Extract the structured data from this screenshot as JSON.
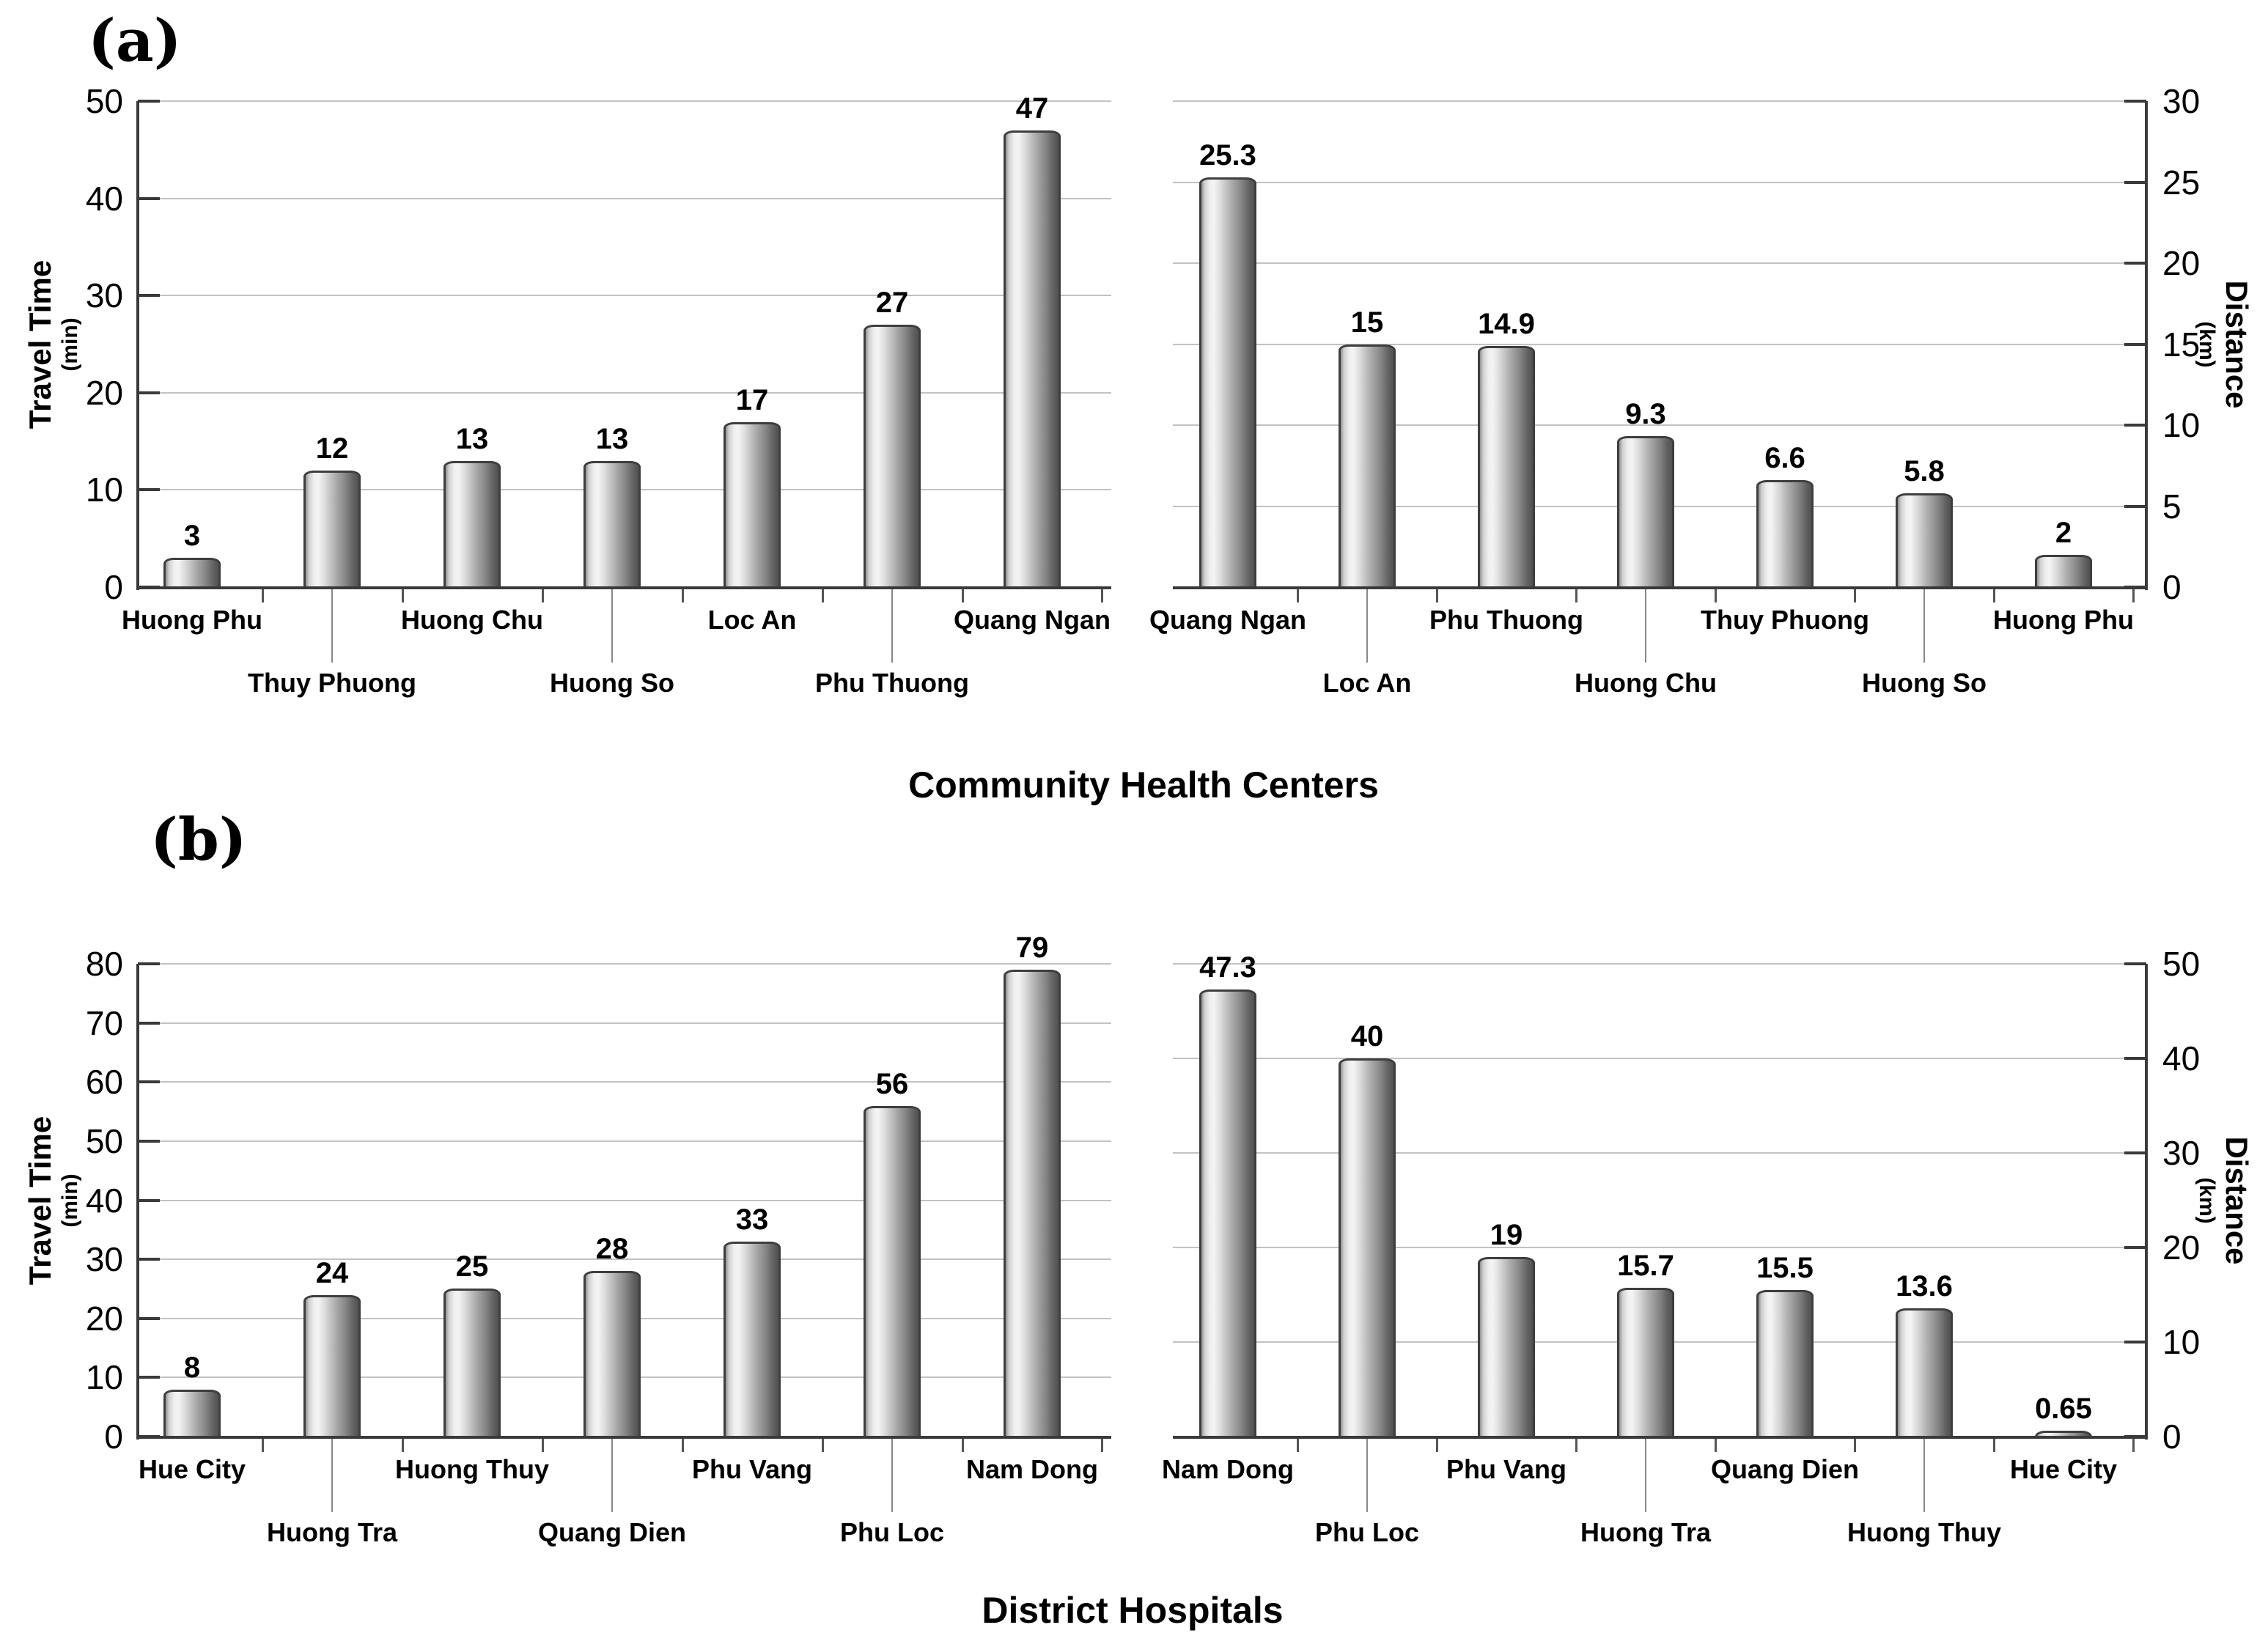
{
  "panels": {
    "a": {
      "label": "(a)",
      "title": "Community Health Centers"
    },
    "b": {
      "label": "(b)",
      "title": "District Hospitals"
    }
  },
  "colors": {
    "bar_light": "#f4f4f4",
    "bar_dark": "#525252",
    "bar_outline": "#3e3e3e",
    "gridline": "#c2c2c2",
    "axis": "#3a3a3a",
    "text": "#000000",
    "background": "#ffffff"
  },
  "chart_data": [
    {
      "type": "bar",
      "panel": "a",
      "slot": "left",
      "title": "Community Health Centers",
      "ylabel": "Travel Time",
      "ylabel_unit": "(min)",
      "axis_side": "left",
      "ylim": [
        0,
        50
      ],
      "ytick_step": 10,
      "grid": true,
      "legend": "none",
      "categories": [
        "Huong Phu",
        "Thuy Phuong",
        "Huong Chu",
        "Huong So",
        "Loc An",
        "Phu Thuong",
        "Quang Ngan"
      ],
      "values": [
        3,
        12,
        13,
        13,
        17,
        27,
        47
      ]
    },
    {
      "type": "bar",
      "panel": "a",
      "slot": "right",
      "title": "Community Health Centers",
      "ylabel": "Distance",
      "ylabel_unit": "(km)",
      "axis_side": "right",
      "ylim": [
        0,
        30
      ],
      "ytick_step": 5,
      "grid": true,
      "legend": "none",
      "categories": [
        "Quang Ngan",
        "Loc An",
        "Phu Thuong",
        "Huong Chu",
        "Thuy Phuong",
        "Huong So",
        "Huong Phu"
      ],
      "values": [
        25.3,
        15,
        14.9,
        9.3,
        6.6,
        5.8,
        2
      ]
    },
    {
      "type": "bar",
      "panel": "b",
      "slot": "left",
      "title": "District Hospitals",
      "ylabel": "Travel Time",
      "ylabel_unit": "(min)",
      "axis_side": "left",
      "ylim": [
        0,
        80
      ],
      "ytick_step": 10,
      "grid": true,
      "legend": "none",
      "categories": [
        "Hue City",
        "Huong Tra",
        "Huong Thuy",
        "Quang Dien",
        "Phu Vang",
        "Phu Loc",
        "Nam Dong"
      ],
      "values": [
        8,
        24,
        25,
        28,
        33,
        56,
        79
      ]
    },
    {
      "type": "bar",
      "panel": "b",
      "slot": "right",
      "title": "District Hospitals",
      "ylabel": "Distance",
      "ylabel_unit": "(km)",
      "axis_side": "right",
      "ylim": [
        0,
        50
      ],
      "ytick_step": 10,
      "grid": true,
      "legend": "none",
      "categories": [
        "Nam Dong",
        "Phu Loc",
        "Phu Vang",
        "Huong Tra",
        "Quang Dien",
        "Huong Thuy",
        "Hue City"
      ],
      "values": [
        47.3,
        40,
        19,
        15.7,
        15.5,
        13.6,
        0.65
      ]
    }
  ]
}
